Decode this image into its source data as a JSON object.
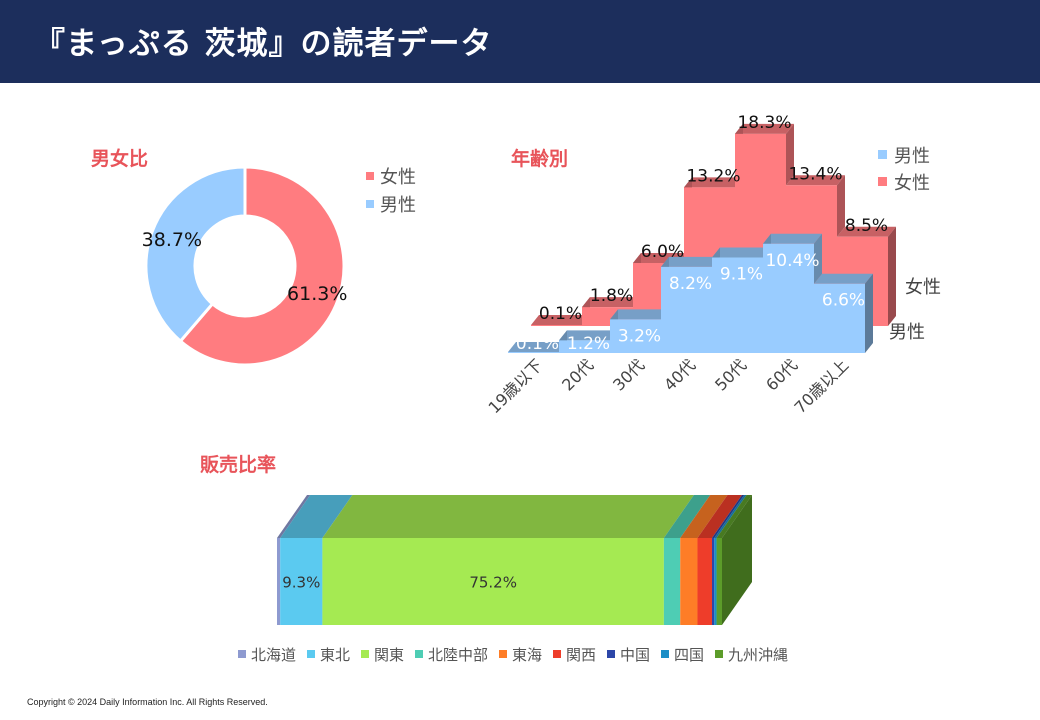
{
  "page": {
    "title": "『まっぷる 茨城』の読者データ",
    "copyright": "Copyright © 2024 Daily Information Inc. All Rights Reserved."
  },
  "colors": {
    "header": "#1c2e5c",
    "section_title": "#e8545a",
    "female": "#ff7c80",
    "male": "#99ccff"
  },
  "chart_data": [
    {
      "type": "pie",
      "title": "男女比",
      "legend_position": "right",
      "series": [
        {
          "name": "女性",
          "value": 61.3,
          "label": "61.3%",
          "color": "#ff7c80"
        },
        {
          "name": "男性",
          "value": 38.7,
          "label": "38.7%",
          "color": "#99ccff"
        }
      ]
    },
    {
      "type": "area",
      "title": "年齢別",
      "legend_position": "top-right",
      "categories": [
        "19歳以下",
        "20代",
        "30代",
        "40代",
        "50代",
        "60代",
        "70歳以上"
      ],
      "series": [
        {
          "name": "男性",
          "values": [
            0.1,
            1.2,
            3.2,
            8.2,
            9.1,
            10.4,
            6.6
          ],
          "labels": [
            "0.1%",
            "1.2%",
            "3.2%",
            "8.2%",
            "9.1%",
            "10.4%",
            "6.6%"
          ],
          "color": "#99ccff"
        },
        {
          "name": "女性",
          "values": [
            0.1,
            1.8,
            6.0,
            13.2,
            18.3,
            13.4,
            8.5
          ],
          "labels": [
            "0.1%",
            "1.8%",
            "6.0%",
            "13.2%",
            "18.3%",
            "13.4%",
            "8.5%"
          ],
          "color": "#ff7c80"
        }
      ]
    },
    {
      "type": "bar",
      "title": "販売比率",
      "legend_position": "bottom",
      "series": [
        {
          "name": "北海道",
          "value": 0.7,
          "label": "",
          "color": "#8e9ad0"
        },
        {
          "name": "東北",
          "value": 9.3,
          "label": "9.3%",
          "color": "#5bcaf0"
        },
        {
          "name": "関東",
          "value": 75.2,
          "label": "75.2%",
          "color": "#a5ea52"
        },
        {
          "name": "北陸中部",
          "value": 3.6,
          "label": "",
          "color": "#4ecdb4"
        },
        {
          "name": "東海",
          "value": 3.8,
          "label": "",
          "color": "#fe7d27"
        },
        {
          "name": "関西",
          "value": 3.2,
          "label": "",
          "color": "#ee3d2a"
        },
        {
          "name": "中国",
          "value": 0.5,
          "label": "",
          "color": "#2c46a8"
        },
        {
          "name": "四国",
          "value": 0.5,
          "label": "",
          "color": "#1b8ec6"
        },
        {
          "name": "九州沖縄",
          "value": 1.2,
          "label": "",
          "color": "#5c9c2a"
        }
      ]
    }
  ]
}
